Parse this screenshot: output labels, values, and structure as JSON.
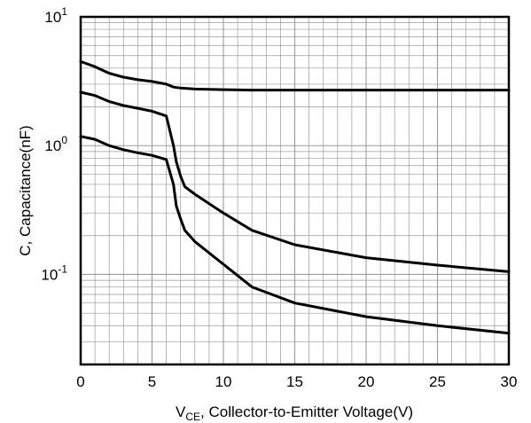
{
  "chart_data": {
    "type": "line",
    "title": "",
    "xlabel": {
      "main": "V",
      "sub": "CE",
      "rest": ", Collector-to-Emitter Voltage(V)"
    },
    "ylabel": "C, Capacitance(nF)",
    "x_scale": "linear",
    "y_scale": "log",
    "xlim": [
      0,
      30
    ],
    "ylim": [
      0.02,
      10
    ],
    "x_ticks": [
      0,
      5,
      10,
      15,
      20,
      25,
      30
    ],
    "x_tick_labels": [
      "0",
      "5",
      "10",
      "15",
      "20",
      "25",
      "30"
    ],
    "y_ticks": [
      {
        "value": 10,
        "base": "10",
        "exp": "1"
      },
      {
        "value": 1,
        "base": "10",
        "exp": "0"
      },
      {
        "value": 0.1,
        "base": "10",
        "exp": "-1"
      }
    ],
    "grid": true,
    "legend": "none",
    "series": [
      {
        "x": [
          0,
          1,
          2,
          3,
          4,
          5,
          6,
          6.5,
          7,
          8,
          10,
          12,
          15,
          20,
          25,
          30
        ],
        "y": [
          4.5,
          4.1,
          3.65,
          3.4,
          3.25,
          3.15,
          3.0,
          2.85,
          2.8,
          2.75,
          2.72,
          2.7,
          2.7,
          2.7,
          2.7,
          2.7
        ]
      },
      {
        "x": [
          0,
          1,
          2,
          3,
          4,
          5,
          6,
          6.5,
          6.7,
          7,
          7.3,
          8,
          10,
          12,
          15,
          20,
          25,
          30
        ],
        "y": [
          2.6,
          2.45,
          2.2,
          2.05,
          1.95,
          1.85,
          1.7,
          1.0,
          0.75,
          0.58,
          0.48,
          0.42,
          0.3,
          0.22,
          0.17,
          0.135,
          0.118,
          0.105
        ]
      },
      {
        "x": [
          0,
          1,
          2,
          3,
          4,
          5,
          6,
          6.5,
          6.7,
          7,
          7.3,
          8,
          10,
          12,
          15,
          20,
          25,
          30
        ],
        "y": [
          1.18,
          1.12,
          1.0,
          0.93,
          0.88,
          0.84,
          0.78,
          0.5,
          0.34,
          0.27,
          0.22,
          0.18,
          0.12,
          0.08,
          0.06,
          0.047,
          0.04,
          0.035
        ]
      }
    ],
    "colors": {
      "line": "#000000",
      "grid": "#9a9a9a",
      "frame": "#000000"
    }
  }
}
